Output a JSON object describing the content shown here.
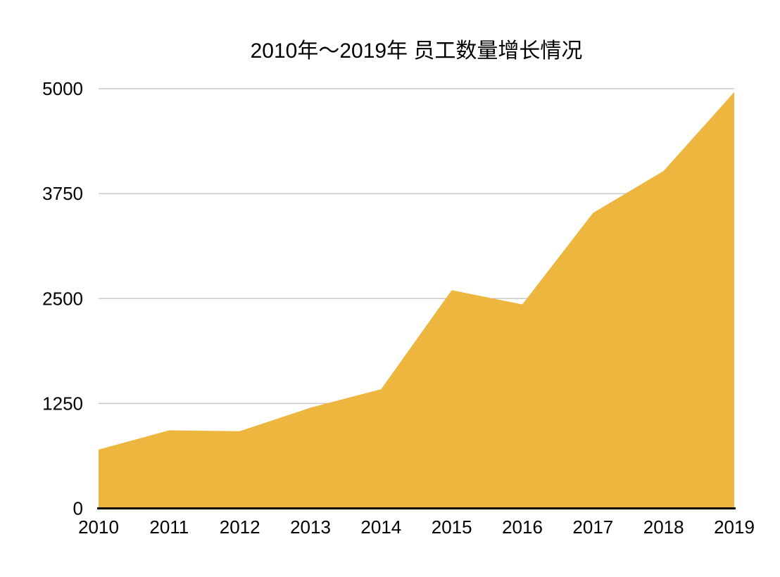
{
  "chart_data": {
    "type": "area",
    "title": "2010年～2019年 员工数量增长情况",
    "categories": [
      "2010",
      "2011",
      "2012",
      "2013",
      "2014",
      "2015",
      "2016",
      "2017",
      "2018",
      "2019"
    ],
    "series": [
      {
        "name": "员工数量",
        "values": [
          700,
          930,
          920,
          1200,
          1420,
          2600,
          2430,
          3520,
          4020,
          4960
        ]
      }
    ],
    "xlabel": "",
    "ylabel": "",
    "ylim": [
      0,
      5000
    ],
    "yticks": [
      0,
      1250,
      2500,
      3750,
      5000
    ],
    "grid": true,
    "legend": false,
    "colors": {
      "area_fill": "#EDB63E",
      "gridline": "#C9C9C9",
      "axis_line": "#000000",
      "text": "#000000",
      "background": "#FFFFFF"
    }
  }
}
